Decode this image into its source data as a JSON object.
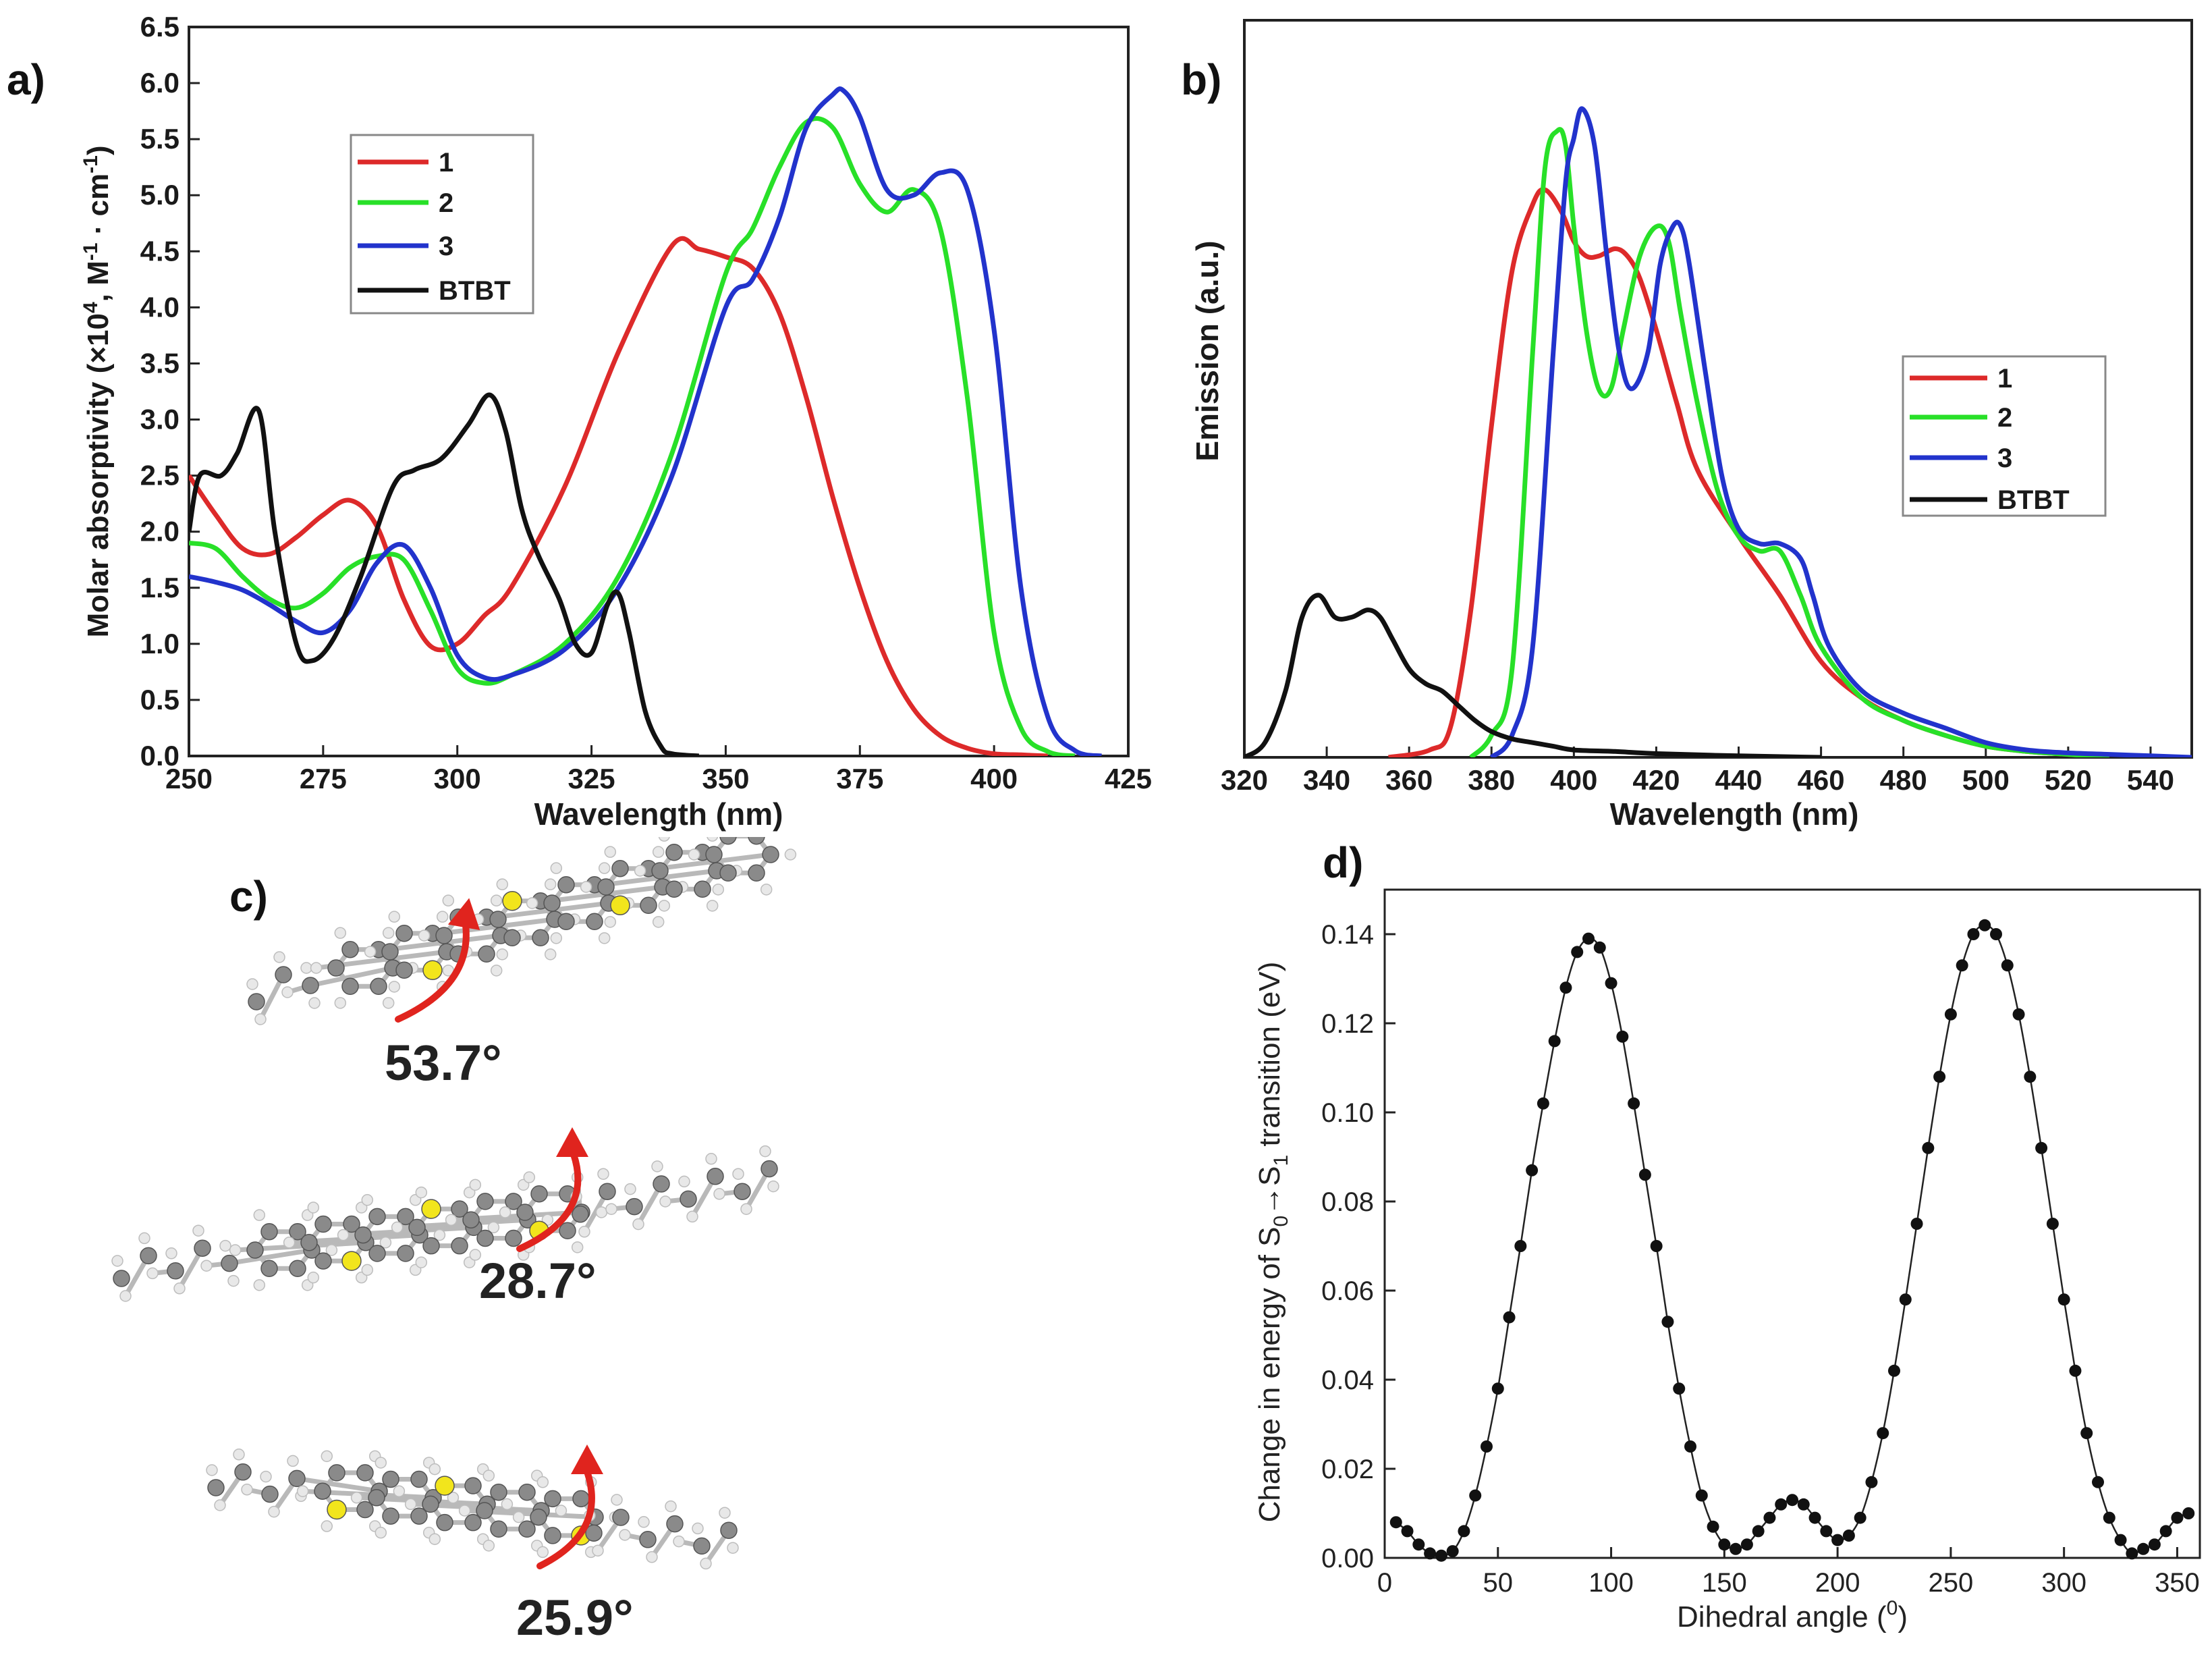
{
  "panel_labels": {
    "a": "a)",
    "b": "b)",
    "c": "c)",
    "d": "d)"
  },
  "colors": {
    "s1": "#dd2a2a",
    "s2": "#28e028",
    "s3": "#2233cc",
    "btbt": "#111111"
  },
  "chart_data": [
    {
      "id": "a",
      "type": "line",
      "xlabel": "Wavelength (nm)",
      "ylabel_parts": [
        "Molar absorptivity (×10",
        "4",
        ", M",
        "-1",
        " · cm",
        "-1",
        ")"
      ],
      "xlim": [
        250,
        425
      ],
      "ylim": [
        0,
        6.5
      ],
      "xticks": [
        "250",
        "275",
        "300",
        "325",
        "350",
        "375",
        "400",
        "425"
      ],
      "yticks": [
        "0.0",
        "0.5",
        "1.0",
        "1.5",
        "2.0",
        "2.5",
        "3.0",
        "3.5",
        "4.0",
        "4.5",
        "5.0",
        "5.5",
        "6.0",
        "6.5"
      ],
      "legend": [
        "1",
        "2",
        "3",
        "BTBT"
      ],
      "series": [
        {
          "name": "1",
          "x": [
            250,
            255,
            260,
            265,
            270,
            275,
            280,
            285,
            290,
            295,
            300,
            305,
            310,
            320,
            330,
            340,
            345,
            350,
            355,
            360,
            365,
            370,
            375,
            380,
            385,
            390,
            395,
            400,
            405,
            410
          ],
          "y": [
            2.5,
            2.15,
            1.85,
            1.8,
            1.95,
            2.15,
            2.28,
            2.05,
            1.4,
            0.98,
            1.0,
            1.25,
            1.5,
            2.4,
            3.6,
            4.55,
            4.52,
            4.45,
            4.35,
            3.95,
            3.2,
            2.3,
            1.5,
            0.85,
            0.42,
            0.18,
            0.07,
            0.02,
            0.01,
            0.0
          ]
        },
        {
          "name": "2",
          "x": [
            250,
            255,
            260,
            265,
            270,
            275,
            280,
            285,
            290,
            295,
            300,
            305,
            310,
            320,
            330,
            340,
            350,
            355,
            360,
            365,
            370,
            375,
            380,
            385,
            390,
            395,
            400,
            405,
            410,
            415
          ],
          "y": [
            1.9,
            1.85,
            1.6,
            1.4,
            1.32,
            1.45,
            1.68,
            1.78,
            1.75,
            1.3,
            0.78,
            0.65,
            0.72,
            1.0,
            1.6,
            2.7,
            4.3,
            4.7,
            5.25,
            5.65,
            5.6,
            5.1,
            4.85,
            5.05,
            4.7,
            3.2,
            1.1,
            0.25,
            0.04,
            0.0
          ]
        },
        {
          "name": "3",
          "x": [
            250,
            255,
            260,
            265,
            270,
            275,
            280,
            285,
            290,
            295,
            300,
            305,
            310,
            320,
            330,
            340,
            350,
            355,
            360,
            365,
            370,
            372,
            375,
            380,
            385,
            390,
            395,
            400,
            405,
            410,
            415,
            420
          ],
          "y": [
            1.6,
            1.55,
            1.48,
            1.35,
            1.2,
            1.1,
            1.3,
            1.72,
            1.88,
            1.5,
            0.9,
            0.7,
            0.72,
            0.95,
            1.5,
            2.5,
            4.0,
            4.25,
            4.8,
            5.6,
            5.9,
            5.93,
            5.7,
            5.05,
            5.0,
            5.2,
            5.05,
            3.8,
            1.5,
            0.35,
            0.05,
            0.0
          ]
        },
        {
          "name": "BTBT",
          "x": [
            250,
            252,
            256,
            259,
            263,
            266,
            270,
            273,
            277,
            282,
            288,
            292,
            297,
            302,
            306,
            309,
            312,
            315,
            319,
            322,
            325,
            328,
            330,
            332,
            335,
            338,
            340,
            345
          ],
          "y": [
            2.0,
            2.5,
            2.5,
            2.7,
            3.08,
            2.0,
            1.0,
            0.85,
            1.05,
            1.6,
            2.4,
            2.55,
            2.65,
            2.95,
            3.22,
            2.9,
            2.2,
            1.8,
            1.4,
            1.0,
            0.92,
            1.35,
            1.45,
            1.1,
            0.4,
            0.08,
            0.02,
            0.0
          ]
        }
      ]
    },
    {
      "id": "b",
      "type": "line",
      "xlabel": "Wavelength (nm)",
      "ylabel": "Emission (a.u.)",
      "xlim": [
        320,
        550
      ],
      "ylim": [
        0,
        1.0
      ],
      "xticks": [
        "320",
        "340",
        "360",
        "380",
        "400",
        "420",
        "440",
        "460",
        "480",
        "500",
        "520",
        "540"
      ],
      "legend": [
        "1",
        "2",
        "3",
        "BTBT"
      ],
      "series": [
        {
          "name": "1",
          "x": [
            355,
            365,
            370,
            375,
            380,
            385,
            390,
            393,
            397,
            400,
            403,
            406,
            410,
            413,
            416,
            420,
            425,
            430,
            440,
            450,
            460,
            470,
            480,
            490,
            500,
            510,
            520,
            530
          ],
          "y": [
            0.0,
            0.01,
            0.04,
            0.2,
            0.45,
            0.66,
            0.75,
            0.77,
            0.74,
            0.7,
            0.68,
            0.68,
            0.69,
            0.68,
            0.65,
            0.58,
            0.48,
            0.39,
            0.3,
            0.22,
            0.13,
            0.08,
            0.05,
            0.03,
            0.015,
            0.008,
            0.004,
            0.0
          ]
        },
        {
          "name": "2",
          "x": [
            375,
            380,
            385,
            390,
            393,
            396,
            398,
            400,
            403,
            406,
            409,
            412,
            416,
            420,
            423,
            426,
            430,
            435,
            440,
            445,
            450,
            455,
            460,
            470,
            480,
            490,
            500,
            510,
            520,
            530
          ],
          "y": [
            0.0,
            0.03,
            0.12,
            0.55,
            0.8,
            0.85,
            0.83,
            0.72,
            0.58,
            0.5,
            0.5,
            0.58,
            0.68,
            0.72,
            0.7,
            0.6,
            0.48,
            0.36,
            0.3,
            0.28,
            0.28,
            0.22,
            0.15,
            0.08,
            0.05,
            0.03,
            0.015,
            0.008,
            0.004,
            0.0
          ]
        },
        {
          "name": "3",
          "x": [
            380,
            385,
            390,
            395,
            398,
            400,
            402,
            405,
            408,
            411,
            414,
            418,
            421,
            424,
            426,
            428,
            432,
            436,
            440,
            445,
            450,
            455,
            458,
            462,
            470,
            480,
            490,
            500,
            510,
            520,
            530,
            540,
            550
          ],
          "y": [
            0.0,
            0.03,
            0.15,
            0.55,
            0.78,
            0.84,
            0.88,
            0.83,
            0.68,
            0.55,
            0.5,
            0.55,
            0.67,
            0.72,
            0.72,
            0.67,
            0.52,
            0.38,
            0.31,
            0.29,
            0.29,
            0.27,
            0.22,
            0.15,
            0.09,
            0.06,
            0.04,
            0.02,
            0.01,
            0.006,
            0.004,
            0.002,
            0.0
          ]
        },
        {
          "name": "BTBT",
          "x": [
            320,
            325,
            330,
            334,
            338,
            342,
            346,
            350,
            353,
            356,
            360,
            364,
            368,
            372,
            376,
            380,
            385,
            390,
            395,
            400,
            410,
            420,
            440,
            460
          ],
          "y": [
            0.0,
            0.02,
            0.09,
            0.19,
            0.22,
            0.19,
            0.19,
            0.2,
            0.19,
            0.16,
            0.12,
            0.1,
            0.09,
            0.07,
            0.05,
            0.035,
            0.025,
            0.02,
            0.015,
            0.01,
            0.008,
            0.005,
            0.002,
            0.0
          ]
        }
      ]
    },
    {
      "id": "d",
      "type": "scatter",
      "xlabel_parts": [
        "Dihedral angle (",
        "0",
        ")"
      ],
      "ylabel_parts": [
        "Change in energy of S",
        "0",
        "→S",
        "1",
        " transition (eV)"
      ],
      "xlim": [
        0,
        360
      ],
      "ylim": [
        0,
        0.15
      ],
      "xticks": [
        "0",
        "50",
        "100",
        "150",
        "200",
        "250",
        "300",
        "350"
      ],
      "yticks": [
        "0.00",
        "0.02",
        "0.04",
        "0.06",
        "0.08",
        "0.10",
        "0.12",
        "0.14"
      ],
      "x": [
        5,
        10,
        15,
        20,
        25,
        30,
        35,
        40,
        45,
        50,
        55,
        60,
        65,
        70,
        75,
        80,
        85,
        90,
        95,
        100,
        105,
        110,
        115,
        120,
        125,
        130,
        135,
        140,
        145,
        150,
        155,
        160,
        165,
        170,
        175,
        180,
        185,
        190,
        195,
        200,
        205,
        210,
        215,
        220,
        225,
        230,
        235,
        240,
        245,
        250,
        255,
        260,
        265,
        270,
        275,
        280,
        285,
        290,
        295,
        300,
        305,
        310,
        315,
        320,
        325,
        330,
        335,
        340,
        345,
        350,
        355
      ],
      "y": [
        0.008,
        0.006,
        0.003,
        0.001,
        0.0005,
        0.0015,
        0.006,
        0.014,
        0.025,
        0.038,
        0.054,
        0.07,
        0.087,
        0.102,
        0.116,
        0.128,
        0.136,
        0.139,
        0.137,
        0.129,
        0.117,
        0.102,
        0.086,
        0.07,
        0.053,
        0.038,
        0.025,
        0.014,
        0.007,
        0.003,
        0.002,
        0.003,
        0.006,
        0.009,
        0.012,
        0.013,
        0.012,
        0.009,
        0.006,
        0.004,
        0.005,
        0.009,
        0.017,
        0.028,
        0.042,
        0.058,
        0.075,
        0.092,
        0.108,
        0.122,
        0.133,
        0.14,
        0.142,
        0.14,
        0.133,
        0.122,
        0.108,
        0.092,
        0.075,
        0.058,
        0.042,
        0.028,
        0.017,
        0.009,
        0.004,
        0.001,
        0.002,
        0.003,
        0.006,
        0.009,
        0.01
      ]
    }
  ],
  "molecules": {
    "angles": [
      "53.7°",
      "28.7°",
      "25.9°"
    ]
  }
}
